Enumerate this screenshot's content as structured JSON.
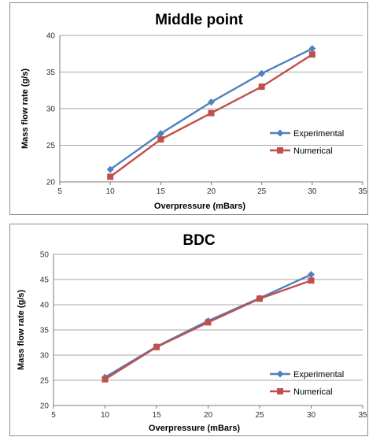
{
  "chart_data": [
    {
      "type": "line",
      "title": "Middle point",
      "xlabel": "Overpressure (mBars)",
      "ylabel": "Mass flow rate (g/s)",
      "xlim": [
        5,
        35
      ],
      "ylim": [
        20,
        40
      ],
      "xticks": [
        5,
        10,
        15,
        20,
        25,
        30,
        35
      ],
      "yticks": [
        20,
        25,
        30,
        35,
        40
      ],
      "grid": true,
      "legend": "right",
      "series": [
        {
          "name": "Experimental",
          "color": "#4f81bd",
          "marker": "diamond",
          "x": [
            10,
            15,
            20,
            25,
            30
          ],
          "y": [
            21.7,
            26.6,
            30.9,
            34.8,
            38.2
          ]
        },
        {
          "name": "Numerical",
          "color": "#c0504d",
          "marker": "square",
          "x": [
            10,
            15,
            20,
            25,
            30
          ],
          "y": [
            20.7,
            25.8,
            29.4,
            33.0,
            37.4
          ]
        }
      ]
    },
    {
      "type": "line",
      "title": "BDC",
      "xlabel": "Overpressure (mBars)",
      "ylabel": "Mass flow rate (g/s)",
      "xlim": [
        5,
        35
      ],
      "ylim": [
        20,
        50
      ],
      "xticks": [
        5,
        10,
        15,
        20,
        25,
        30,
        35
      ],
      "yticks": [
        20,
        25,
        30,
        35,
        40,
        45,
        50
      ],
      "grid": true,
      "legend": "bottom-right",
      "series": [
        {
          "name": "Experimental",
          "color": "#4f81bd",
          "marker": "diamond",
          "x": [
            10,
            15,
            20,
            25,
            30
          ],
          "y": [
            25.6,
            31.7,
            36.8,
            41.3,
            46.0
          ]
        },
        {
          "name": "Numerical",
          "color": "#c0504d",
          "marker": "square",
          "x": [
            10,
            15,
            20,
            25,
            30
          ],
          "y": [
            25.2,
            31.6,
            36.5,
            41.2,
            44.8
          ]
        }
      ]
    }
  ]
}
